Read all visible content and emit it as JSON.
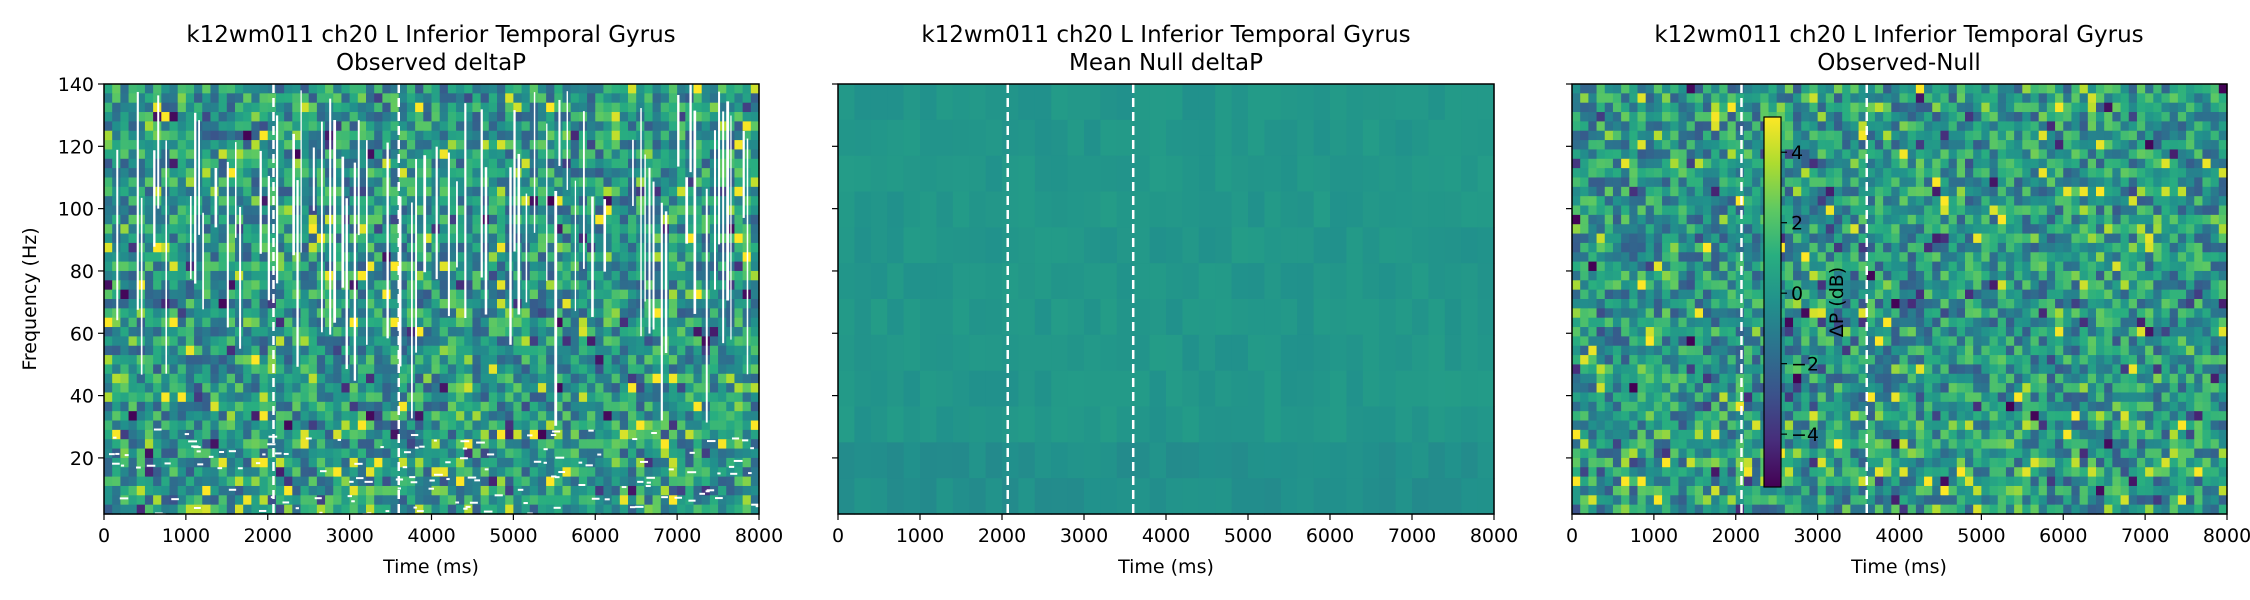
{
  "chart_data": [
    {
      "type": "heatmap",
      "title": "k12wm011 ch20 L Inferior Temporal Gyrus",
      "subtitle": "Observed deltaP",
      "xlabel": "Time (ms)",
      "ylabel": "Frequency (Hz)",
      "xlim": [
        0,
        8000
      ],
      "ylim": [
        2,
        140
      ],
      "x_ticks": [
        0,
        1000,
        2000,
        3000,
        4000,
        5000,
        6000,
        7000,
        8000
      ],
      "y_ticks": [
        20,
        40,
        60,
        80,
        100,
        120,
        140
      ],
      "vlines": [
        2070,
        3600
      ],
      "colormap": "viridis",
      "masked": true,
      "value_range": [
        -5.5,
        5
      ]
    },
    {
      "type": "heatmap",
      "title": "k12wm011 ch20 L Inferior Temporal Gyrus",
      "subtitle": "Mean Null deltaP",
      "xlabel": "Time (ms)",
      "ylabel": "",
      "xlim": [
        0,
        8000
      ],
      "ylim": [
        2,
        140
      ],
      "x_ticks": [
        0,
        1000,
        2000,
        3000,
        4000,
        5000,
        6000,
        7000,
        8000
      ],
      "y_ticks": [
        20,
        40,
        60,
        80,
        100,
        120,
        140
      ],
      "vlines": [
        2070,
        3600
      ],
      "colormap": "viridis",
      "masked": false,
      "value_range": [
        -5.5,
        5
      ]
    },
    {
      "type": "heatmap",
      "title": "k12wm011 ch20 L Inferior Temporal Gyrus",
      "subtitle": "Observed-Null",
      "xlabel": "Time (ms)",
      "ylabel": "",
      "xlim": [
        0,
        8000
      ],
      "ylim": [
        2,
        140
      ],
      "x_ticks": [
        0,
        1000,
        2000,
        3000,
        4000,
        5000,
        6000,
        7000,
        8000
      ],
      "y_ticks": [
        20,
        40,
        60,
        80,
        100,
        120,
        140
      ],
      "vlines": [
        2070,
        3600
      ],
      "colormap": "viridis",
      "masked": false,
      "value_range": [
        -5.5,
        5
      ],
      "colorbar": {
        "label": "ΔP (dB)",
        "range": [
          -5.5,
          5
        ],
        "ticks": [
          -4,
          -2,
          0,
          2,
          4
        ],
        "tick_labels": [
          "−4",
          "−2",
          "0",
          "2",
          "4"
        ]
      }
    }
  ]
}
